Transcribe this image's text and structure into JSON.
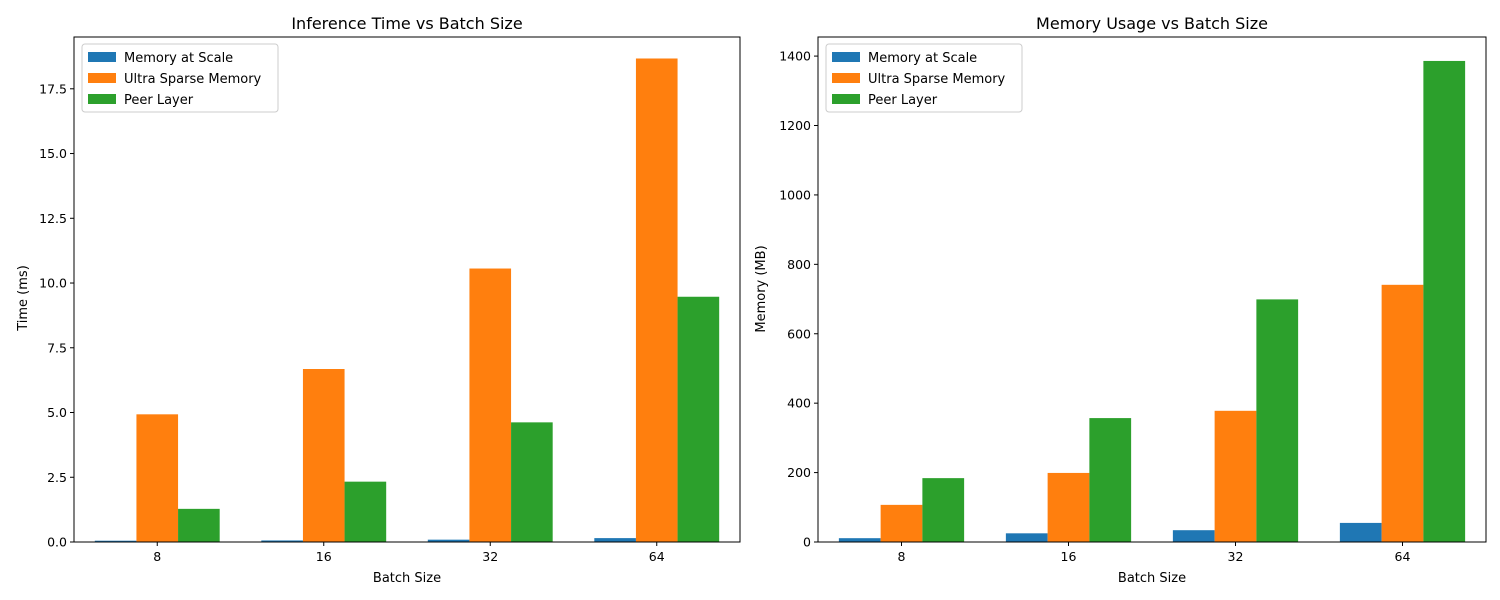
{
  "chart_data": [
    {
      "type": "bar",
      "title": "Inference Time vs Batch Size",
      "xlabel": "Batch Size",
      "ylabel": "Time (ms)",
      "categories": [
        "8",
        "16",
        "32",
        "64"
      ],
      "ylim": [
        0,
        19.5
      ],
      "yticks": [
        "0.0",
        "2.5",
        "5.0",
        "7.5",
        "10.0",
        "12.5",
        "15.0",
        "17.5"
      ],
      "legend_position": "top-left",
      "grid": false,
      "series": [
        {
          "name": "Memory at Scale",
          "color": "#1f77b4",
          "values": [
            0.05,
            0.06,
            0.09,
            0.15
          ]
        },
        {
          "name": "Ultra Sparse Memory",
          "color": "#ff7f0e",
          "values": [
            4.93,
            6.68,
            10.56,
            18.67
          ]
        },
        {
          "name": "Peer Layer",
          "color": "#2ca02c",
          "values": [
            1.28,
            2.33,
            4.62,
            9.47
          ]
        }
      ]
    },
    {
      "type": "bar",
      "title": "Memory Usage vs Batch Size",
      "xlabel": "Batch Size",
      "ylabel": "Memory (MB)",
      "categories": [
        "8",
        "16",
        "32",
        "64"
      ],
      "ylim": [
        0,
        1455
      ],
      "yticks": [
        "0",
        "200",
        "400",
        "600",
        "800",
        "1000",
        "1200",
        "1400"
      ],
      "legend_position": "top-left",
      "grid": false,
      "series": [
        {
          "name": "Memory at Scale",
          "color": "#1f77b4",
          "values": [
            11,
            25,
            34,
            55
          ]
        },
        {
          "name": "Ultra Sparse Memory",
          "color": "#ff7f0e",
          "values": [
            107,
            199,
            378,
            741
          ]
        },
        {
          "name": "Peer Layer",
          "color": "#2ca02c",
          "values": [
            184,
            357,
            699,
            1386
          ]
        }
      ]
    }
  ]
}
